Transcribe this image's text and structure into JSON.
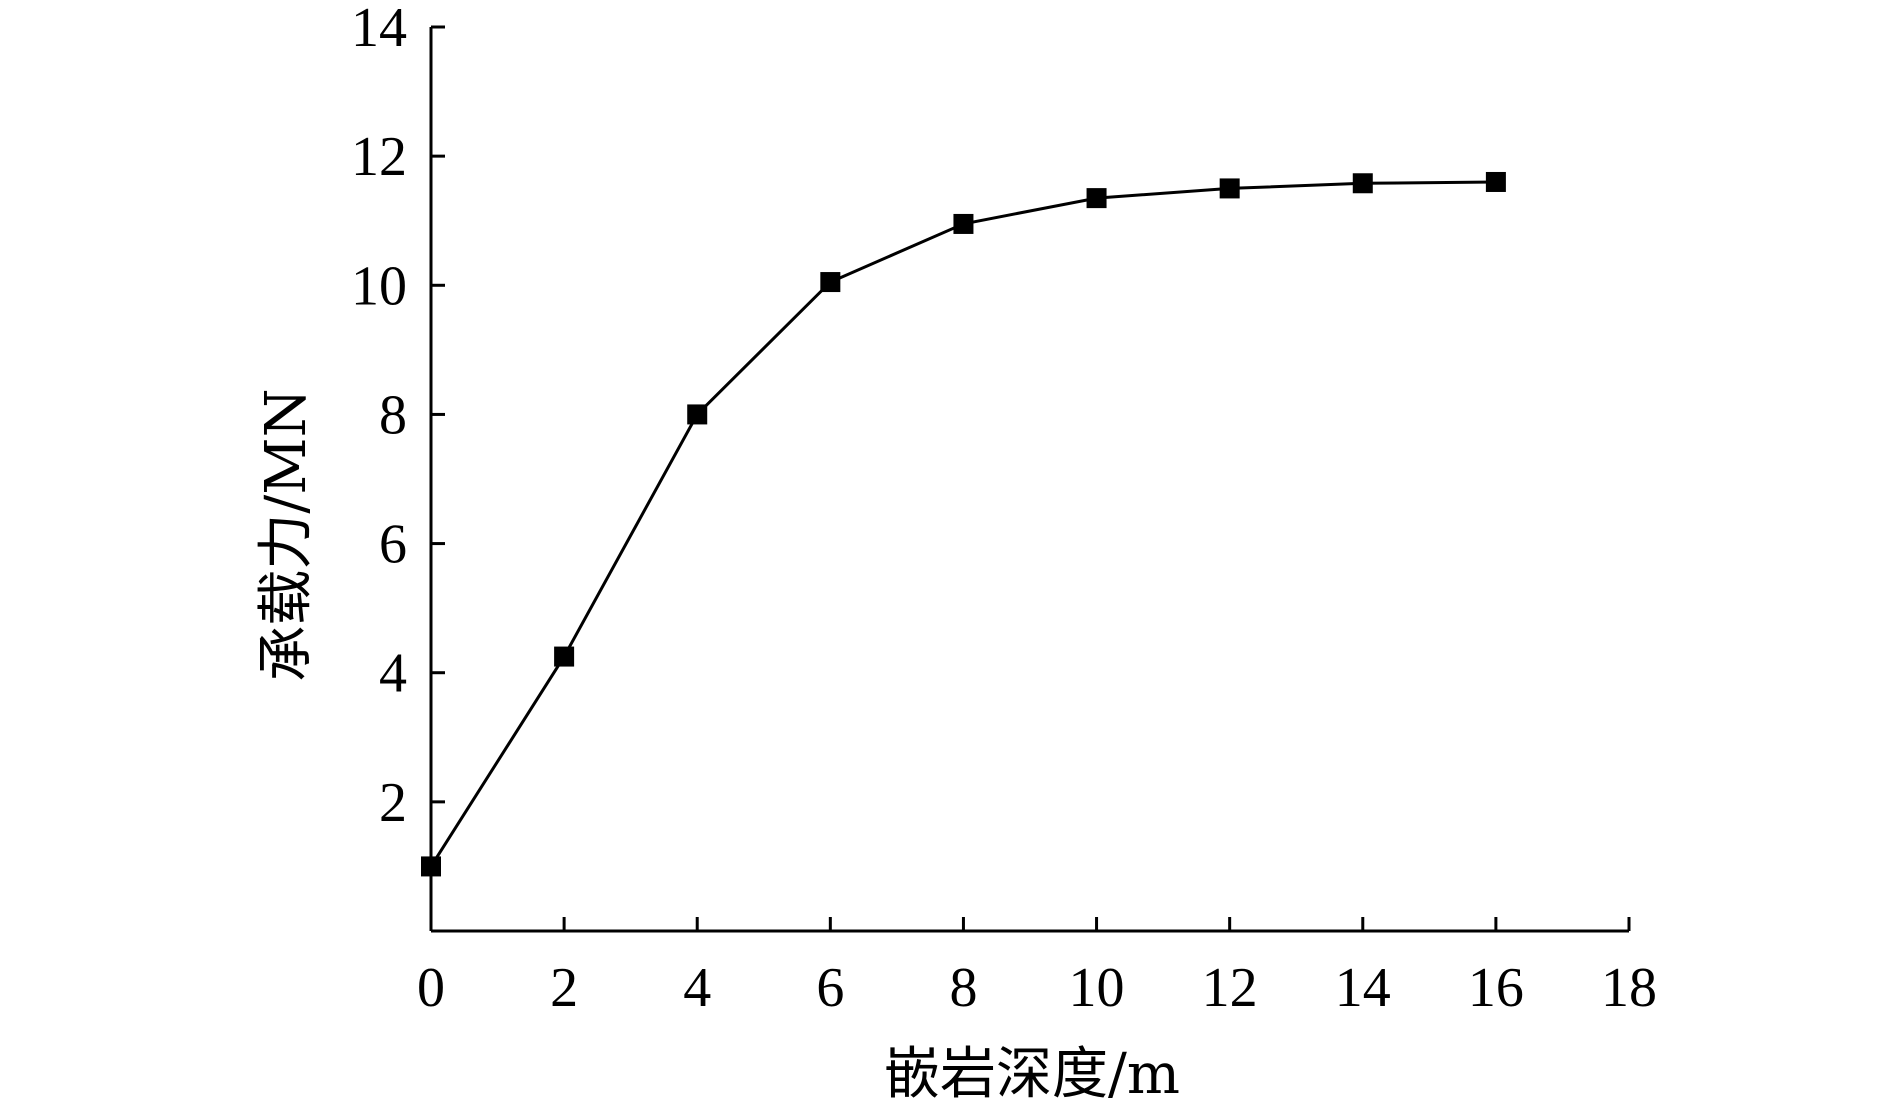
{
  "chart_data": {
    "type": "line",
    "title": "",
    "xlabel": "嵌岩深度/m",
    "ylabel": "承载力/MN",
    "xlim": [
      0,
      18
    ],
    "ylim": [
      0,
      14
    ],
    "xticks": [
      0,
      2,
      4,
      6,
      8,
      10,
      12,
      14,
      16,
      18
    ],
    "yticks": [
      2,
      4,
      6,
      8,
      10,
      12,
      14
    ],
    "grid": false,
    "legend": "none",
    "series": [
      {
        "marker": "square",
        "color": "#000000",
        "x": [
          0,
          2,
          4,
          6,
          8,
          10,
          12,
          14,
          16
        ],
        "y": [
          1.0,
          4.25,
          8.0,
          10.05,
          10.95,
          11.35,
          11.5,
          11.58,
          11.6
        ]
      }
    ]
  }
}
